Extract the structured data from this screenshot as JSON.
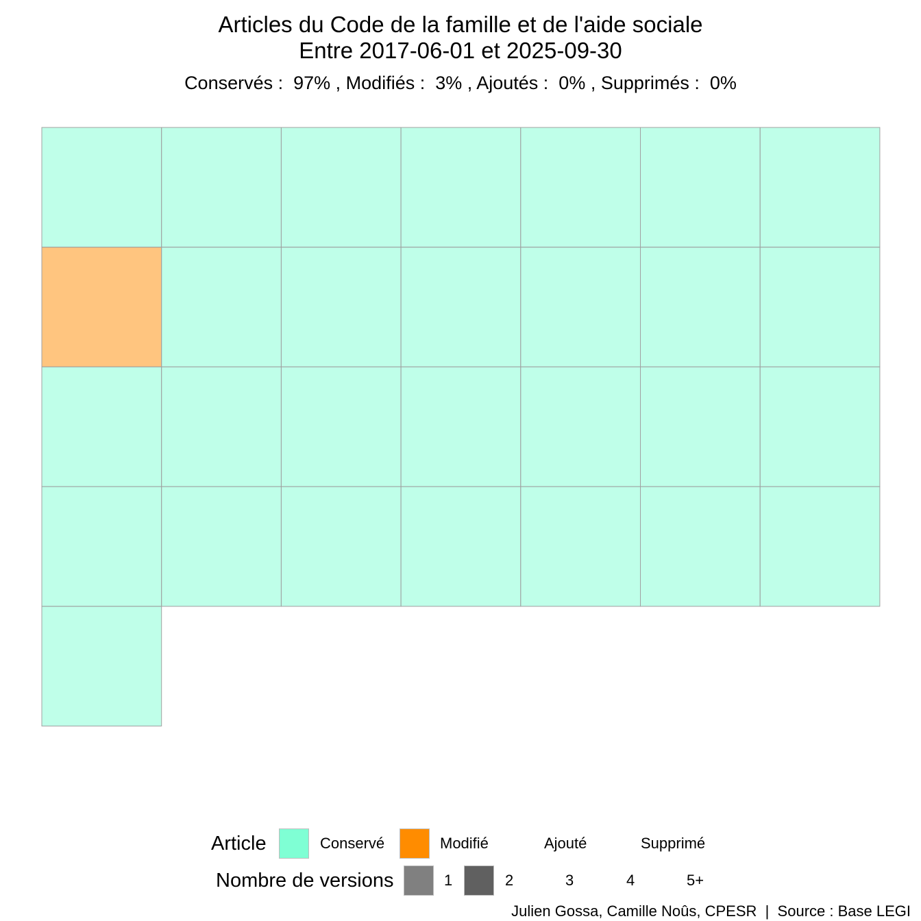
{
  "title": {
    "line1": "Articles du Code de la famille et de l'aide sociale",
    "line2": "Entre 2017-06-01 et 2025-09-30",
    "subtitle": "Conservés :  97% , Modifiés :  3% , Ajoutés :  0% , Supprimés :  0%"
  },
  "chart_data": {
    "type": "waffle",
    "columns": 7,
    "total_articles": 29,
    "cells": [
      "Conservé",
      "Conservé",
      "Conservé",
      "Conservé",
      "Conservé",
      "Conservé",
      "Conservé",
      "Modifié",
      "Conservé",
      "Conservé",
      "Conservé",
      "Conservé",
      "Conservé",
      "Conservé",
      "Conservé",
      "Conservé",
      "Conservé",
      "Conservé",
      "Conservé",
      "Conservé",
      "Conservé",
      "Conservé",
      "Conservé",
      "Conservé",
      "Conservé",
      "Conservé",
      "Conservé",
      "Conservé",
      "Conservé"
    ],
    "cell_versions": [
      1,
      1,
      1,
      1,
      1,
      1,
      1,
      1,
      1,
      1,
      1,
      1,
      1,
      1,
      1,
      1,
      1,
      1,
      1,
      1,
      1,
      1,
      1,
      1,
      1,
      1,
      1,
      1,
      1
    ],
    "counts": {
      "Conservé": 28,
      "Modifié": 1,
      "Ajouté": 0,
      "Supprimé": 0
    },
    "percentages": {
      "Conservés": 97,
      "Modifiés": 3,
      "Ajoutés": 0,
      "Supprimés": 0
    },
    "colors": {
      "Conservé": "#7fffd4",
      "Modifié": "#ff8c00",
      "Ajouté": "#ffffff",
      "Supprimé": "#ffffff"
    },
    "fill_alpha_by_versions": {
      "1": 0.5
    },
    "cell_border_color": "#a0a0a0",
    "legend_position": "bottom"
  },
  "legend": {
    "article": {
      "title": "Article",
      "items": [
        {
          "label": "Conservé",
          "color": "#7fffd4",
          "key_visible": true
        },
        {
          "label": "Modifié",
          "color": "#ff8c00",
          "key_visible": true
        },
        {
          "label": "Ajouté",
          "color": "#ffffff",
          "key_visible": false
        },
        {
          "label": "Supprimé",
          "color": "#ffffff",
          "key_visible": false
        }
      ]
    },
    "versions": {
      "title": "Nombre de versions",
      "items": [
        {
          "label": "1",
          "color": "#808080",
          "key_visible": true
        },
        {
          "label": "2",
          "color": "#606060",
          "key_visible": true
        },
        {
          "label": "3",
          "color": "#ffffff",
          "key_visible": false
        },
        {
          "label": "4",
          "color": "#ffffff",
          "key_visible": false
        },
        {
          "label": "5+",
          "color": "#ffffff",
          "key_visible": false
        }
      ]
    }
  },
  "caption": "Julien Gossa, Camille Noûs, CPESR  |  Source : Base LEGI"
}
